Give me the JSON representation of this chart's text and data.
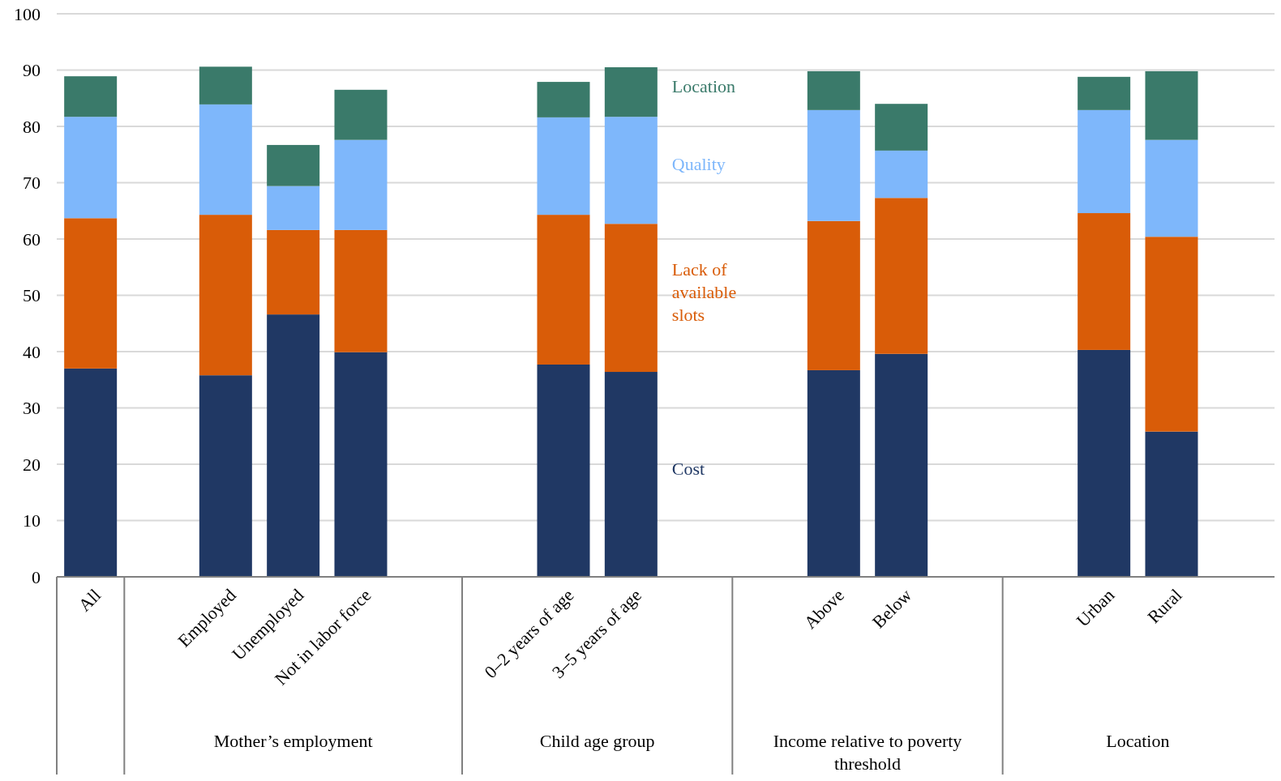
{
  "chart_data": {
    "type": "bar",
    "stacked": true,
    "legend": false,
    "grid": "y",
    "categories": [
      "All",
      null,
      "Employed",
      "Unemployed",
      "Not in labor force",
      null,
      null,
      "0–2 years of age",
      "3–5 years of age",
      null,
      null,
      "Above",
      "Below",
      null,
      null,
      "Urban",
      "Rural",
      null
    ],
    "series": [
      {
        "name": "Cost",
        "color": "#203864",
        "values": [
          37.0,
          null,
          35.8,
          46.6,
          39.9,
          null,
          null,
          37.7,
          36.4,
          null,
          null,
          36.7,
          39.6,
          null,
          null,
          40.3,
          25.8,
          null
        ]
      },
      {
        "name": "Lack of available slots",
        "color": "#d95c08",
        "values": [
          26.7,
          null,
          28.5,
          15.0,
          21.7,
          null,
          null,
          26.6,
          26.3,
          null,
          null,
          26.5,
          27.7,
          null,
          null,
          24.3,
          34.6,
          null
        ]
      },
      {
        "name": "Quality",
        "color": "#7eb7fb",
        "values": [
          18.0,
          null,
          19.6,
          7.8,
          16.0,
          null,
          null,
          17.3,
          19.0,
          null,
          null,
          19.7,
          8.4,
          null,
          null,
          18.3,
          17.2,
          null
        ]
      },
      {
        "name": "Location",
        "color": "#3a7a6a",
        "values": [
          7.2,
          null,
          6.7,
          7.3,
          8.9,
          null,
          null,
          6.3,
          8.8,
          null,
          null,
          6.9,
          8.3,
          null,
          null,
          5.9,
          12.2,
          null
        ]
      }
    ],
    "ylim": [
      0,
      100
    ],
    "yticks": [
      0,
      10,
      20,
      30,
      40,
      50,
      60,
      70,
      80,
      90,
      100
    ],
    "annotations": [
      "Mother’s employment",
      "Child age group",
      "Income relative to poverty threshold",
      "Location"
    ]
  }
}
